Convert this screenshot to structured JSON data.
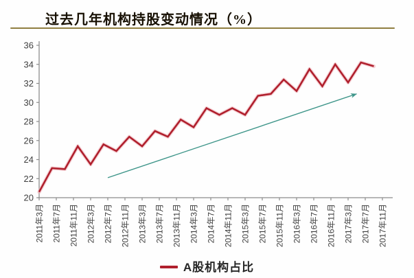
{
  "header": {
    "title": "过去几年机构持股变动情况（%）",
    "rule_color": "#8f7e40"
  },
  "legend": {
    "label": "A股机构占比",
    "swatch_color": "#b0202d"
  },
  "chart_data": {
    "type": "line",
    "title": "过去几年机构持股变动情况（%）",
    "grid": false,
    "legend_position": "bottom-center",
    "axis_color": "#8c8c8c",
    "tick_label_color": "#3f3f3f",
    "ylim": [
      20,
      36
    ],
    "y_ticks": [
      20,
      22,
      24,
      26,
      28,
      30,
      32,
      34,
      36
    ],
    "x_tick_labels": [
      "2011年3月",
      "2011年7月",
      "2011年11月",
      "2012年3月",
      "2012年7月",
      "2012年11月",
      "2013年3月",
      "2013年7月",
      "2013年11月",
      "2014年3月",
      "2014年7月",
      "2014年11月",
      "2015年3月",
      "2015年7月",
      "2015年11月",
      "2016年3月",
      "2016年7月",
      "2016年11月",
      "2017年3月",
      "2017年7月",
      "2017年11月"
    ],
    "months_per_tick": 4,
    "points_interval_months": 3,
    "x_periods": [
      "2011-03",
      "2011-06",
      "2011-09",
      "2011-12",
      "2012-03",
      "2012-06",
      "2012-09",
      "2012-12",
      "2013-03",
      "2013-06",
      "2013-09",
      "2013-12",
      "2014-03",
      "2014-06",
      "2014-09",
      "2014-12",
      "2015-03",
      "2015-06",
      "2015-09",
      "2015-12",
      "2016-03",
      "2016-06",
      "2016-09",
      "2016-12",
      "2017-03",
      "2017-06",
      "2017-09"
    ],
    "series": [
      {
        "name": "A股机构占比",
        "color": "#b0202d",
        "glow_color": "#eeb3ba",
        "values": [
          20.6,
          23.1,
          23.0,
          25.4,
          23.5,
          25.6,
          24.9,
          26.4,
          25.4,
          27.0,
          26.4,
          28.2,
          27.4,
          29.4,
          28.7,
          29.4,
          28.7,
          30.7,
          30.9,
          32.4,
          31.2,
          33.5,
          31.7,
          34.0,
          32.1,
          34.2,
          33.8
        ]
      }
    ],
    "trend_arrow": {
      "color": "#3f968a",
      "from_month_offset": 16,
      "from_value": 22.1,
      "to_month_offset": 74,
      "to_value": 30.9
    }
  }
}
